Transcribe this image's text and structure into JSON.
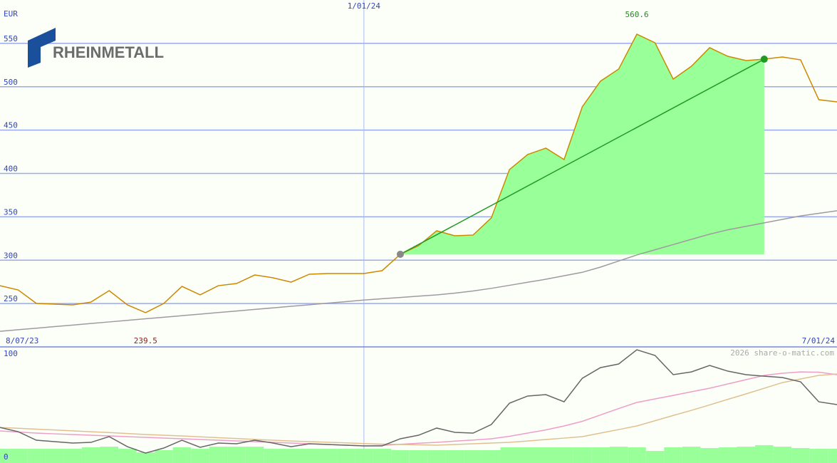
{
  "logo": "RHEINMETALL",
  "watermark": "2026 share-o-matic.com",
  "chart_data": [
    {
      "type": "line",
      "y_label": "EUR",
      "ylim": [
        200,
        600
      ],
      "yticks": [
        250,
        300,
        350,
        400,
        450,
        500,
        550
      ],
      "grid": true,
      "categories": [
        "8/07/23",
        null,
        null,
        null,
        null,
        null,
        null,
        null,
        null,
        null,
        null,
        null,
        null,
        null,
        null,
        null,
        null,
        null,
        null,
        null,
        "1/01/24",
        null,
        null,
        null,
        null,
        null,
        null,
        null,
        null,
        null,
        null,
        null,
        null,
        null,
        null,
        null,
        null,
        null,
        null,
        null,
        null,
        null,
        null,
        null,
        null,
        null,
        "7/01/24"
      ],
      "highlight_color": "#99ff99",
      "trend_color": "#229922",
      "max_color": "#228822",
      "min_color": "#882222",
      "series": [
        {
          "color": "#cc8800",
          "values": [
            270.6,
            265.7,
            250.1,
            249.3,
            248.5,
            251.7,
            264.9,
            248.5,
            239.5,
            250.1,
            269.8,
            260,
            270.6,
            273.1,
            282.9,
            279.7,
            274.7,
            283.8,
            284.6,
            284.6,
            284.6,
            287.9,
            306.8,
            316.6,
            333.9,
            328.1,
            329,
            348.7,
            404.5,
            421.8,
            429.2,
            416,
            476.8,
            506.4,
            520.3,
            560.6,
            550.7,
            508.8,
            523.6,
            545,
            535.1,
            530.2,
            531.8,
            534.3,
            531,
            485,
            482.5
          ]
        },
        {
          "color": "#a09aa0",
          "values": [
            218,
            219.8,
            221.6,
            223.4,
            225.2,
            227,
            228.8,
            230.6,
            232.4,
            234.2,
            236,
            237.8,
            239.6,
            241.4,
            243.2,
            245,
            246.8,
            248.6,
            250.4,
            252.2,
            254,
            255.5,
            257,
            258.5,
            260,
            262,
            264.5,
            267.5,
            271,
            274.5,
            278,
            282,
            286,
            292,
            299,
            306,
            312,
            318,
            324,
            330,
            335,
            339,
            343,
            347,
            351,
            354,
            357
          ]
        }
      ]
    },
    {
      "type": "line",
      "ylim": [
        -6,
        102.7
      ],
      "yticks": [
        0,
        100
      ],
      "bars": {
        "color": "#99ff99",
        "values": [
          7.3,
          7.3,
          7.3,
          7.3,
          7.3,
          8.7,
          9.3,
          7.3,
          4,
          6,
          8.7,
          7.3,
          9.3,
          9.3,
          9.3,
          7.3,
          7.3,
          7.3,
          7.3,
          7.3,
          7.3,
          7.3,
          6,
          6,
          6,
          6,
          6,
          6,
          8.7,
          8.7,
          8.7,
          8.7,
          8.7,
          8.7,
          9.3,
          8.7,
          5.3,
          8.7,
          9.3,
          8,
          8.7,
          9.3,
          10.7,
          9.3,
          8,
          7.3,
          7.3
        ]
      },
      "series": [
        {
          "color": "#ee9ec8",
          "values": [
            24,
            23,
            22,
            21.3,
            20.7,
            20,
            19.3,
            18.7,
            18,
            17.3,
            16.7,
            16,
            15.3,
            14.7,
            14,
            13.3,
            12.7,
            12,
            11.3,
            10.7,
            10,
            10.5,
            11.5,
            12.5,
            13.3,
            14.5,
            15.5,
            16.7,
            19,
            22,
            25,
            28.7,
            33,
            39,
            45,
            50.7,
            54,
            57.3,
            60.7,
            64,
            68,
            72,
            76,
            78,
            79.3,
            79,
            76.7
          ]
        },
        {
          "color": "#e0c090",
          "values": [
            27.3,
            26.5,
            25.7,
            24.9,
            24.1,
            23.3,
            22.5,
            21.6,
            20.7,
            20,
            19.3,
            18.5,
            17.7,
            16.9,
            16.1,
            15.3,
            14.6,
            14,
            13.4,
            12.8,
            12.2,
            11.7,
            11.3,
            11,
            10.7,
            11.3,
            12,
            12.7,
            13.3,
            14.6,
            16,
            17.3,
            18.7,
            22,
            25.3,
            28.7,
            33.6,
            38.5,
            43.3,
            48.4,
            53.6,
            58.7,
            64,
            69.3,
            72.7,
            76,
            77.3
          ]
        },
        {
          "color": "#666666",
          "values": [
            27.3,
            23.3,
            15.3,
            14,
            12.7,
            13.3,
            18.7,
            9.3,
            3.3,
            8,
            15.3,
            8.7,
            12.7,
            12,
            15.3,
            12.7,
            9.3,
            12,
            11.3,
            10.7,
            10,
            10,
            16.7,
            20,
            26.7,
            22.7,
            22,
            30,
            50,
            56.7,
            58,
            51.3,
            73.3,
            83.3,
            86.7,
            100,
            94.7,
            76.7,
            79.3,
            85.3,
            80,
            76.7,
            75.3,
            74,
            70,
            51.3,
            48.7
          ]
        }
      ]
    }
  ]
}
